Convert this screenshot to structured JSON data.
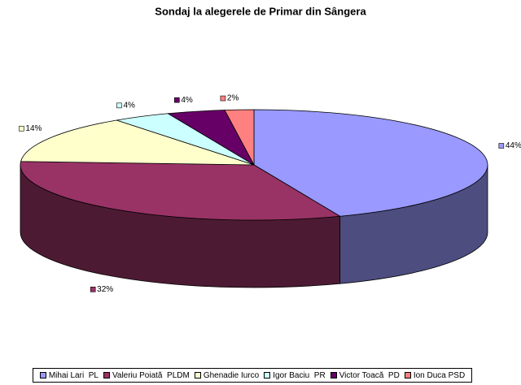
{
  "chart_data": {
    "type": "pie3d",
    "title": "Sondaj la alegerele de Primar din Sângera",
    "categories": [
      "Mihai Lari  PL",
      "Valeriu Poiată  PLDM",
      "Ghenadie Iurco",
      "Igor Baciu  PR",
      "Victor Toacă  PD",
      "Ion Duca PSD"
    ],
    "values": [
      44,
      32,
      14,
      4,
      4,
      2
    ],
    "value_labels": [
      "44%",
      "32%",
      "14%",
      "4%",
      "4%",
      "2%"
    ],
    "colors": [
      "#9999ff",
      "#993366",
      "#ffffcc",
      "#ccffff",
      "#660066",
      "#ff8080"
    ],
    "legend": "bottom"
  }
}
